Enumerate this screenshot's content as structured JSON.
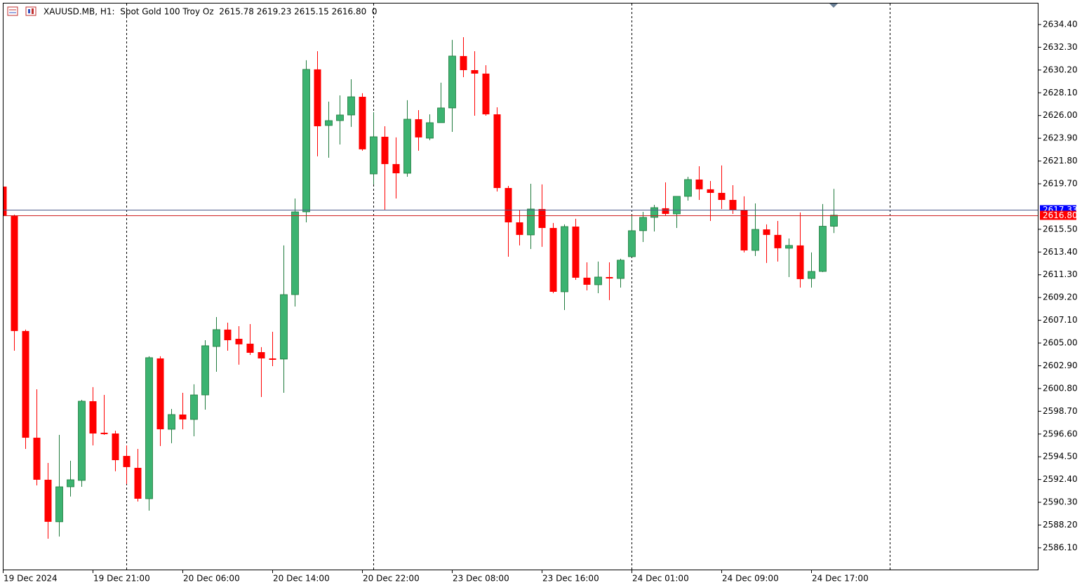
{
  "chart_data": {
    "type": "candlestick",
    "header": "XAUUSD.MB, H1:  Spot Gold 100 Troy Oz  2615.78 2619.23 2615.15 2616.80  0",
    "up_color": "#3cb371",
    "up_line_color": "#1e7a3c",
    "down_color": "#ff0000",
    "categories": [
      "19 Dec 2024",
      null,
      null,
      null,
      null,
      null,
      null,
      null,
      "19 Dec 21:00",
      null,
      null,
      null,
      null,
      null,
      null,
      null,
      "20 Dec 06:00",
      null,
      null,
      null,
      null,
      null,
      null,
      null,
      "20 Dec 14:00",
      null,
      null,
      null,
      null,
      null,
      null,
      null,
      "20 Dec 22:00",
      null,
      null,
      null,
      null,
      null,
      null,
      null,
      "23 Dec 08:00",
      null,
      null,
      null,
      null,
      null,
      null,
      null,
      "23 Dec 16:00",
      null,
      null,
      null,
      null,
      null,
      null,
      null,
      "24 Dec 01:00",
      null,
      null,
      null,
      null,
      null,
      null,
      null,
      "24 Dec 09:00",
      null,
      null,
      null,
      null,
      null,
      null,
      null,
      "24 Dec 17:00",
      null,
      null
    ],
    "open": [
      2619.44,
      2616.72,
      2606.11,
      2596.26,
      2592.38,
      2588.5,
      2591.73,
      2592.32,
      2599.63,
      2596.72,
      2596.65,
      2594.58,
      2593.48,
      2590.63,
      2603.58,
      2597.04,
      2598.4,
      2597.95,
      2600.21,
      2604.68,
      2606.24,
      2605.39,
      2604.94,
      2604.16,
      2603.58,
      2603.52,
      2609.47,
      2617.11,
      2630.26,
      2625.08,
      2625.53,
      2626.05,
      2627.73,
      2620.61,
      2624.04,
      2621.52,
      2620.67,
      2625.66,
      2623.91,
      2625.34,
      2626.7,
      2631.49,
      2630.19,
      2629.87,
      2626.11,
      2619.31,
      2616.14,
      2614.98,
      2617.37,
      2615.62,
      2609.73,
      2615.75,
      2611.03,
      2610.38,
      2611.09,
      2610.96,
      2612.97,
      2615.37,
      2616.6,
      2617.44,
      2616.92,
      2618.54,
      2620.09,
      2619.19,
      2618.86,
      2618.21,
      2617.24,
      2613.55,
      2615.49,
      2614.98,
      2613.75,
      2614.01,
      2610.96,
      2611.61,
      2615.78
    ],
    "high": [
      2619.44,
      2616.85,
      2606.24,
      2600.73,
      2593.93,
      2596.52,
      2594.13,
      2599.76,
      2600.93,
      2600.21,
      2596.91,
      2595.55,
      2595.23,
      2603.78,
      2603.78,
      2598.92,
      2600.41,
      2601.19,
      2605.26,
      2607.4,
      2606.88,
      2606.56,
      2606.75,
      2604.62,
      2606.04,
      2614.01,
      2618.34,
      2631.1,
      2631.94,
      2627.28,
      2627.86,
      2629.35,
      2628.06,
      2626.31,
      2625.01,
      2623.98,
      2627.41,
      2626.5,
      2626.11,
      2629.03,
      2632.98,
      2633.23,
      2631.94,
      2630.64,
      2626.76,
      2619.51,
      2617.24,
      2619.7,
      2619.64,
      2616.08,
      2615.95,
      2616.47,
      2612.45,
      2612.52,
      2612.45,
      2612.78,
      2616.79,
      2617.11,
      2617.76,
      2619.83,
      2618.54,
      2620.35,
      2621.32,
      2619.96,
      2621.39,
      2619.57,
      2618.54,
      2617.89,
      2615.95,
      2616.27,
      2614.65,
      2617.05,
      2613.36,
      2617.83,
      2619.23
    ],
    "low": [
      2616.6,
      2604.29,
      2595.23,
      2591.86,
      2586.94,
      2587.14,
      2590.83,
      2591.73,
      2595.55,
      2596.52,
      2593.16,
      2591.99,
      2590.37,
      2589.53,
      2595.49,
      2595.75,
      2597.04,
      2596.39,
      2598.85,
      2602.35,
      2604.29,
      2603.0,
      2603.9,
      2600.02,
      2602.87,
      2600.41,
      2608.37,
      2616.14,
      2622.23,
      2622.1,
      2623.33,
      2624.95,
      2622.75,
      2619.64,
      2617.31,
      2618.34,
      2620.35,
      2622.75,
      2623.72,
      2625.34,
      2624.49,
      2629.54,
      2625.98,
      2625.98,
      2618.99,
      2612.97,
      2614.01,
      2613.68,
      2613.88,
      2609.6,
      2608.05,
      2610.83,
      2609.86,
      2609.6,
      2608.96,
      2610.12,
      2612.97,
      2614.33,
      2615.3,
      2616.72,
      2615.62,
      2618.15,
      2618.21,
      2616.27,
      2617.37,
      2616.92,
      2613.36,
      2613.03,
      2612.39,
      2612.52,
      2611.09,
      2610.12,
      2610.12,
      2611.55,
      2615.15
    ],
    "close": [
      2616.72,
      2606.11,
      2596.26,
      2592.38,
      2588.5,
      2591.73,
      2592.38,
      2599.63,
      2596.65,
      2596.59,
      2594.19,
      2593.55,
      2590.63,
      2603.65,
      2597.04,
      2598.4,
      2597.95,
      2600.21,
      2604.75,
      2606.24,
      2605.26,
      2604.88,
      2604.1,
      2603.58,
      2603.45,
      2609.47,
      2617.11,
      2630.26,
      2625.01,
      2625.53,
      2626.05,
      2627.73,
      2622.88,
      2624.04,
      2621.52,
      2620.67,
      2625.66,
      2623.98,
      2625.34,
      2626.7,
      2631.49,
      2630.19,
      2629.87,
      2626.11,
      2619.31,
      2616.14,
      2614.98,
      2617.37,
      2615.62,
      2609.73,
      2615.75,
      2611.03,
      2610.38,
      2611.09,
      2610.96,
      2612.65,
      2615.37,
      2616.6,
      2617.5,
      2616.92,
      2618.54,
      2620.09,
      2619.19,
      2618.86,
      2618.21,
      2617.24,
      2613.55,
      2615.49,
      2614.98,
      2613.75,
      2614.01,
      2610.9,
      2611.61,
      2615.78,
      2616.8
    ],
    "ylim": [
      2584.09,
      2636.34
    ],
    "yticks": [
      {
        "value": 2634.4,
        "label": "2634.40"
      },
      {
        "value": 2632.3,
        "label": "2632.30"
      },
      {
        "value": 2630.2,
        "label": "2630.20"
      },
      {
        "value": 2628.1,
        "label": "2628.10"
      },
      {
        "value": 2626.0,
        "label": "2626.00"
      },
      {
        "value": 2623.9,
        "label": "2623.90"
      },
      {
        "value": 2621.8,
        "label": "2621.80"
      },
      {
        "value": 2619.7,
        "label": "2619.70"
      },
      {
        "value": 2615.5,
        "label": "2615.50"
      },
      {
        "value": 2613.4,
        "label": "2613.40"
      },
      {
        "value": 2611.3,
        "label": "2611.30"
      },
      {
        "value": 2609.2,
        "label": "2609.20"
      },
      {
        "value": 2607.1,
        "label": "2607.10"
      },
      {
        "value": 2605.0,
        "label": "2605.00"
      },
      {
        "value": 2602.9,
        "label": "2602.90"
      },
      {
        "value": 2600.8,
        "label": "2600.80"
      },
      {
        "value": 2598.7,
        "label": "2598.70"
      },
      {
        "value": 2596.6,
        "label": "2596.60"
      },
      {
        "value": 2594.5,
        "label": "2594.50"
      },
      {
        "value": 2592.4,
        "label": "2592.40"
      },
      {
        "value": 2590.3,
        "label": "2590.30"
      },
      {
        "value": 2588.2,
        "label": "2588.20"
      },
      {
        "value": 2586.1,
        "label": "2586.10"
      }
    ],
    "price_lines": [
      {
        "value": 2617.33,
        "label": "2617.33",
        "color": "#0000ff",
        "line_color": "#4a5a8a"
      },
      {
        "value": 2616.8,
        "label": "2616.80",
        "color": "#ff0000",
        "line_color": "#d02020"
      }
    ],
    "grid": false
  }
}
